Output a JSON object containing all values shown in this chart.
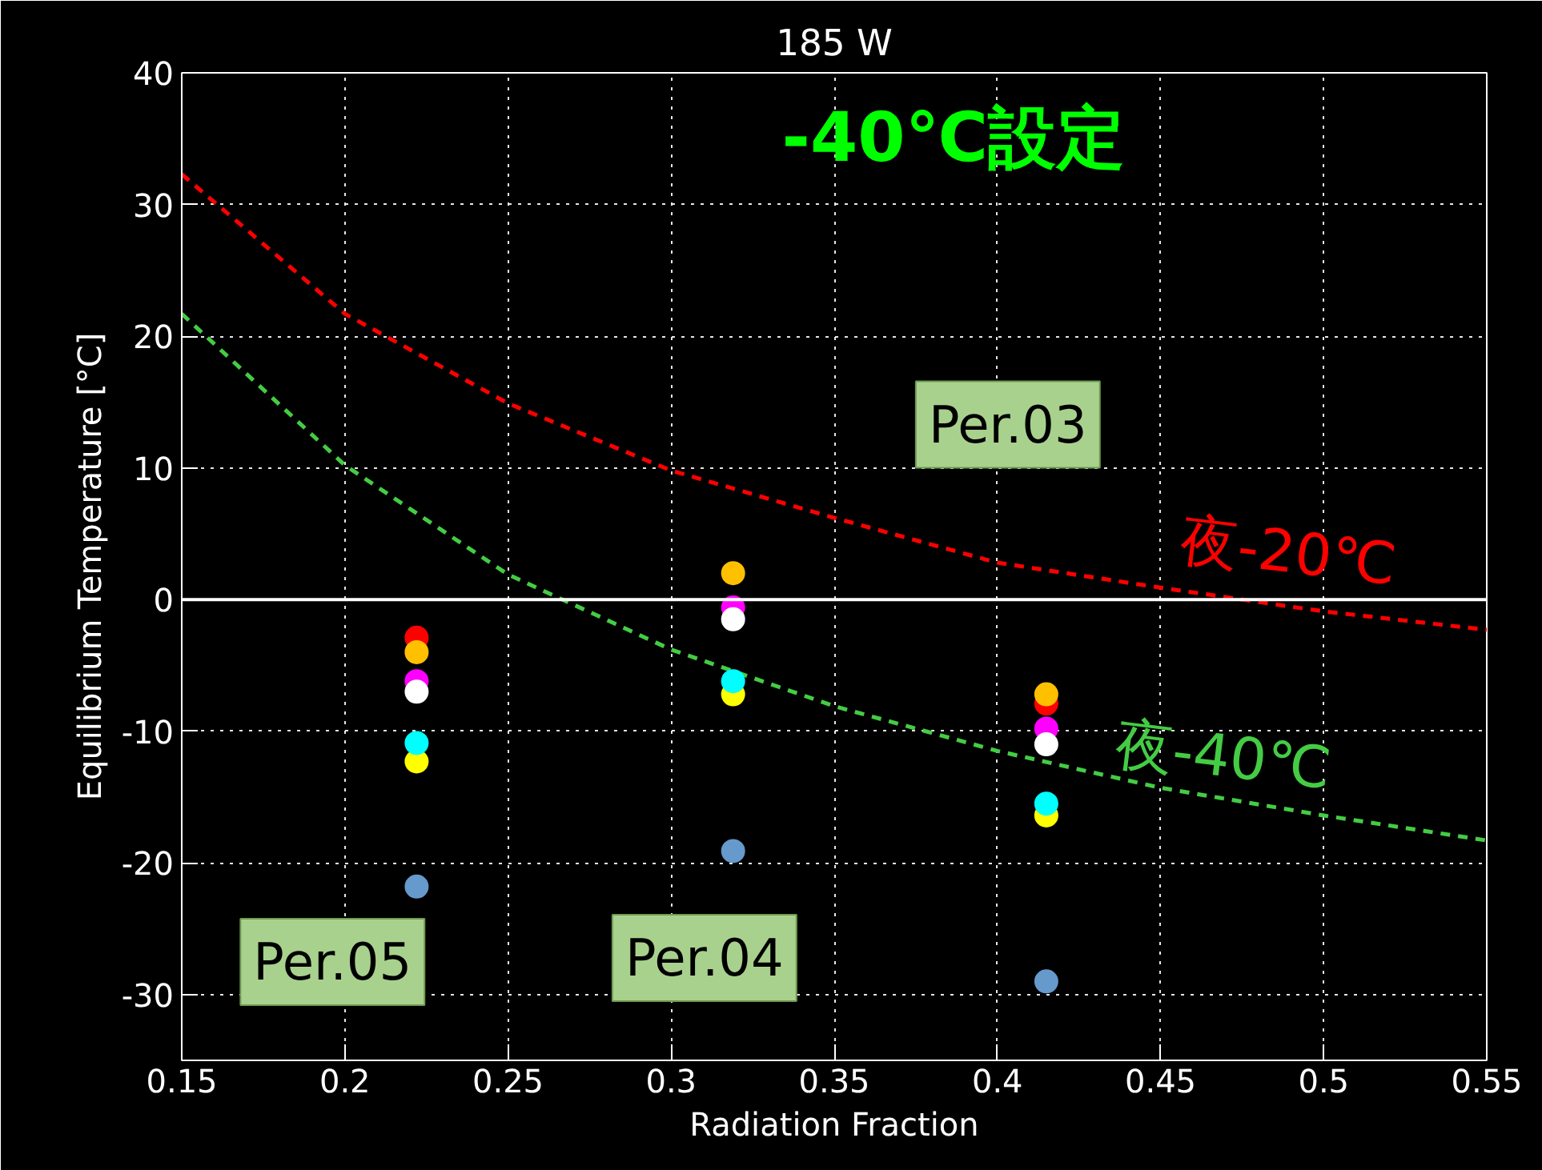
{
  "chart_data": {
    "type": "scatter",
    "title": "185 W",
    "xlabel": "Radiation Fraction",
    "ylabel": "Equilibrium Temperature [°C]",
    "annotations": [
      "-40℃設定",
      "Per.03",
      "Per.04",
      "Per.05"
    ],
    "x": [
      0.222,
      0.319,
      0.415
    ],
    "xlim": [
      0.15,
      0.55
    ],
    "xticks": [
      0.15,
      0.2,
      0.25,
      0.3,
      0.35,
      0.4,
      0.45,
      0.5,
      0.55
    ],
    "ylim": [
      -35,
      40
    ],
    "yticks": [
      -30,
      -20,
      -10,
      0,
      10,
      20,
      30,
      40
    ],
    "grid": true,
    "marker": "circle",
    "ref_lines": [
      {
        "axis": "y",
        "value": 0,
        "color": "#ffffff"
      }
    ],
    "series": [
      {
        "name": "夜-20℃",
        "type": "line",
        "marker": "none",
        "line_style": "dashed",
        "color": "#ff0000",
        "x": [
          0.15,
          0.2,
          0.25,
          0.3,
          0.35,
          0.4,
          0.45,
          0.5,
          0.55
        ],
        "values": [
          32.3,
          21.7,
          14.9,
          9.8,
          6.2,
          2.8,
          0.9,
          -0.9,
          -2.3
        ]
      },
      {
        "name": "夜-40℃",
        "type": "line",
        "marker": "none",
        "line_style": "dashed",
        "color": "#44cc44",
        "x": [
          0.15,
          0.2,
          0.25,
          0.3,
          0.35,
          0.4,
          0.45,
          0.5,
          0.55
        ],
        "values": [
          21.7,
          10.2,
          1.9,
          -3.8,
          -8.1,
          -11.5,
          -14.3,
          -16.4,
          -18.3
        ]
      },
      {
        "color": "#ff0000",
        "values": [
          -2.9,
          null,
          -7.9
        ]
      },
      {
        "color": "#ffc000",
        "values": [
          -4.0,
          2.0,
          -7.2
        ]
      },
      {
        "color": "#ff00ff",
        "values": [
          -6.2,
          -0.6,
          -9.8
        ]
      },
      {
        "color": "#ffffff",
        "values": [
          -7.0,
          -1.5,
          -11.0
        ]
      },
      {
        "color": "#ffff00",
        "values": [
          -12.3,
          -7.2,
          -16.4
        ]
      },
      {
        "color": "#00ffff",
        "values": [
          -10.9,
          -6.2,
          -15.5
        ]
      },
      {
        "color": "#6699cc",
        "values": [
          -21.8,
          -19.1,
          -29.0
        ]
      }
    ]
  }
}
